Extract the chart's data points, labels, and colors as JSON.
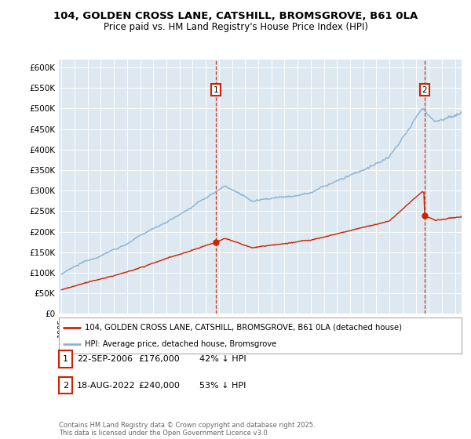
{
  "title": "104, GOLDEN CROSS LANE, CATSHILL, BROMSGROVE, B61 0LA",
  "subtitle": "Price paid vs. HM Land Registry's House Price Index (HPI)",
  "ylabel_ticks": [
    "£0",
    "£50K",
    "£100K",
    "£150K",
    "£200K",
    "£250K",
    "£300K",
    "£350K",
    "£400K",
    "£450K",
    "£500K",
    "£550K",
    "£600K"
  ],
  "ytick_values": [
    0,
    50000,
    100000,
    150000,
    200000,
    250000,
    300000,
    350000,
    400000,
    450000,
    500000,
    550000,
    600000
  ],
  "hpi_color": "#8ab4d4",
  "price_color": "#cc2200",
  "background_color": "#dde8f0",
  "transaction1": {
    "date": "22-SEP-2006",
    "price": 176000,
    "label": "1",
    "hpi_pct": "42% ↓ HPI"
  },
  "transaction2": {
    "date": "18-AUG-2022",
    "price": 240000,
    "label": "2",
    "hpi_pct": "53% ↓ HPI"
  },
  "legend_line1": "104, GOLDEN CROSS LANE, CATSHILL, BROMSGROVE, B61 0LA (detached house)",
  "legend_line2": "HPI: Average price, detached house, Bromsgrove",
  "footer": "Contains HM Land Registry data © Crown copyright and database right 2025.\nThis data is licensed under the Open Government Licence v3.0.",
  "xlim_start": 1994.8,
  "xlim_end": 2025.5,
  "ylim_max": 620000
}
